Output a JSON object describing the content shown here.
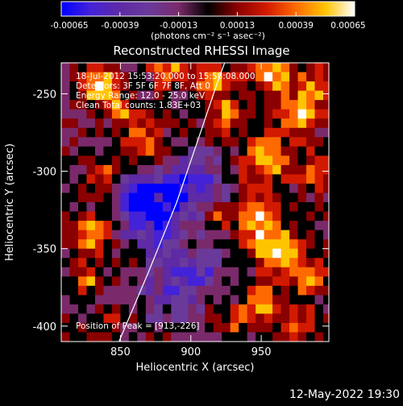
{
  "colorbar": {
    "ticks": [
      "-0.00065",
      "-0.00039",
      "-0.00013",
      "0.00013",
      "0.00039",
      "0.00065"
    ],
    "units": "(photons cm⁻² s⁻¹ asec⁻²)",
    "range": [
      -0.00065,
      0.00065
    ]
  },
  "chart_data": {
    "type": "heatmap",
    "title": "Reconstructed RHESSI Image",
    "xlabel": "Heliocentric X (arcsec)",
    "ylabel": "Heliocentric Y (arcsec)",
    "xlim": [
      808,
      998
    ],
    "ylim": [
      -410,
      -230
    ],
    "xticks": [
      850,
      900,
      950
    ],
    "yticks": [
      -250,
      -300,
      -350,
      -400
    ],
    "annotations": {
      "line1": "18-Jul-2012 15:53:20.000 to 15:58:08.000",
      "line2": "Detectors: 3F 5F 6F 7F 8F, Att 0",
      "line3": "Energy Range: 12.0 - 25.0 keV",
      "line4": "Clean    Total counts: 1.83E+03",
      "peak": "Position of Peak = [913,-226]"
    },
    "limb_arc": [
      [
        849,
        -410
      ],
      [
        870,
        -365
      ],
      [
        890,
        -320
      ],
      [
        905,
        -280
      ],
      [
        918,
        -245
      ],
      [
        926,
        -225
      ]
    ],
    "colormap": [
      "#0000ff",
      "#4422d8",
      "#5e2aa5",
      "#6a3a9a",
      "#7a2a6a",
      "#000000",
      "#8b0000",
      "#d21a00",
      "#ff6a00",
      "#ffc400",
      "#ffffff"
    ]
  },
  "footer": {
    "timestamp": "12-May-2022 19:30"
  }
}
